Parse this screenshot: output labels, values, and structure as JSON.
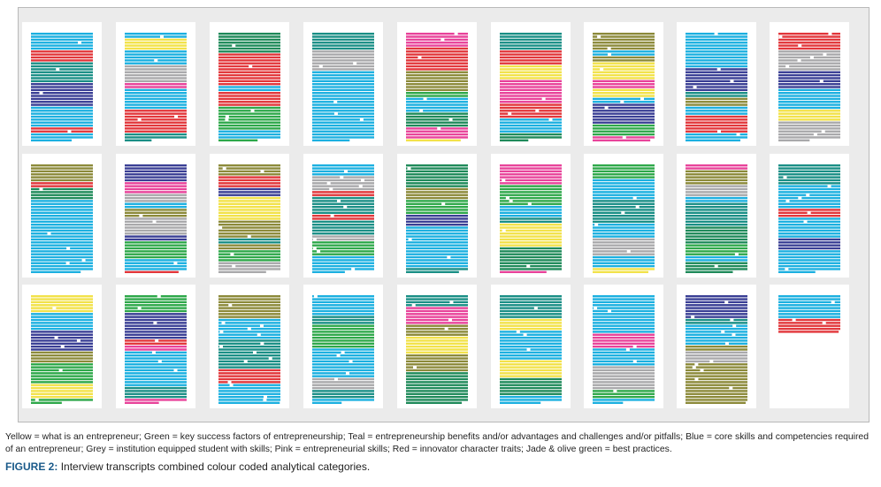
{
  "figure": {
    "legend_text": "Yellow = what is an entrepreneur; Green = key success factors of entrepreneurship; Teal = entrepreneurship benefits and/or advantages and challenges and/or pitfalls; Blue = core skills and competencies required of an entrepreneur; Grey = institution equipped student with skills; Pink = entrepreneurial skills; Red = innovator character traits; Jade & olive green = best practices.",
    "caption_label": "FIGURE 2:",
    "caption_text": "Interview transcripts combined colour coded analytical categories."
  }
}
